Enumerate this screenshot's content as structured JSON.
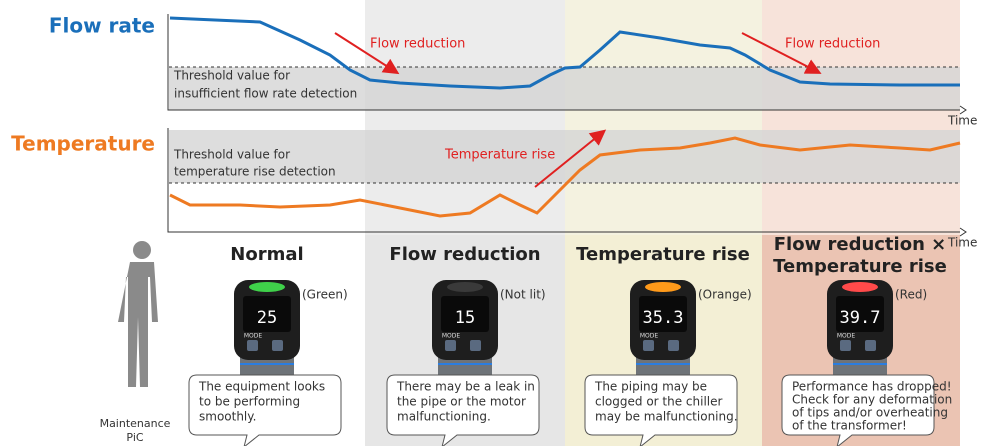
{
  "flow_chart": {
    "title": "Flow rate",
    "threshold_label": [
      "Threshold value for",
      "insufficient flow rate detection"
    ],
    "axis_label": "Time",
    "annotations": [
      "Flow reduction",
      "Flow reduction"
    ]
  },
  "temperature_chart": {
    "title": "Temperature",
    "threshold_label": [
      "Threshold value for",
      "temperature rise detection"
    ],
    "axis_label": "Time",
    "annotations": [
      "Temperature rise"
    ]
  },
  "columns": [
    {
      "title": [
        "Normal"
      ],
      "display": "25",
      "light": "(Green)",
      "mode_label": "MODE",
      "message": [
        "The equipment looks",
        "to be performing",
        "smoothly."
      ]
    },
    {
      "title": [
        "Flow reduction"
      ],
      "display": "15",
      "light": "(Not lit)",
      "mode_label": "MODE",
      "message": [
        "There may be a leak in",
        "the pipe or the motor",
        "malfunctioning."
      ]
    },
    {
      "title": [
        "Temperature rise"
      ],
      "display": "35.3",
      "light": "(Orange)",
      "mode_label": "MODE",
      "message": [
        "The piping may be",
        "clogged or the chiller",
        "may be malfunctioning."
      ]
    },
    {
      "title": [
        "Flow reduction ×",
        "Temperature rise"
      ],
      "display": "39.7",
      "light": "(Red)",
      "mode_label": "MODE",
      "message": [
        "Performance has dropped!",
        "Check for any deformation",
        "of tips and/or overheating",
        "of the transformer!"
      ]
    }
  ],
  "person": {
    "label": [
      "Maintenance",
      "PiC"
    ]
  }
}
